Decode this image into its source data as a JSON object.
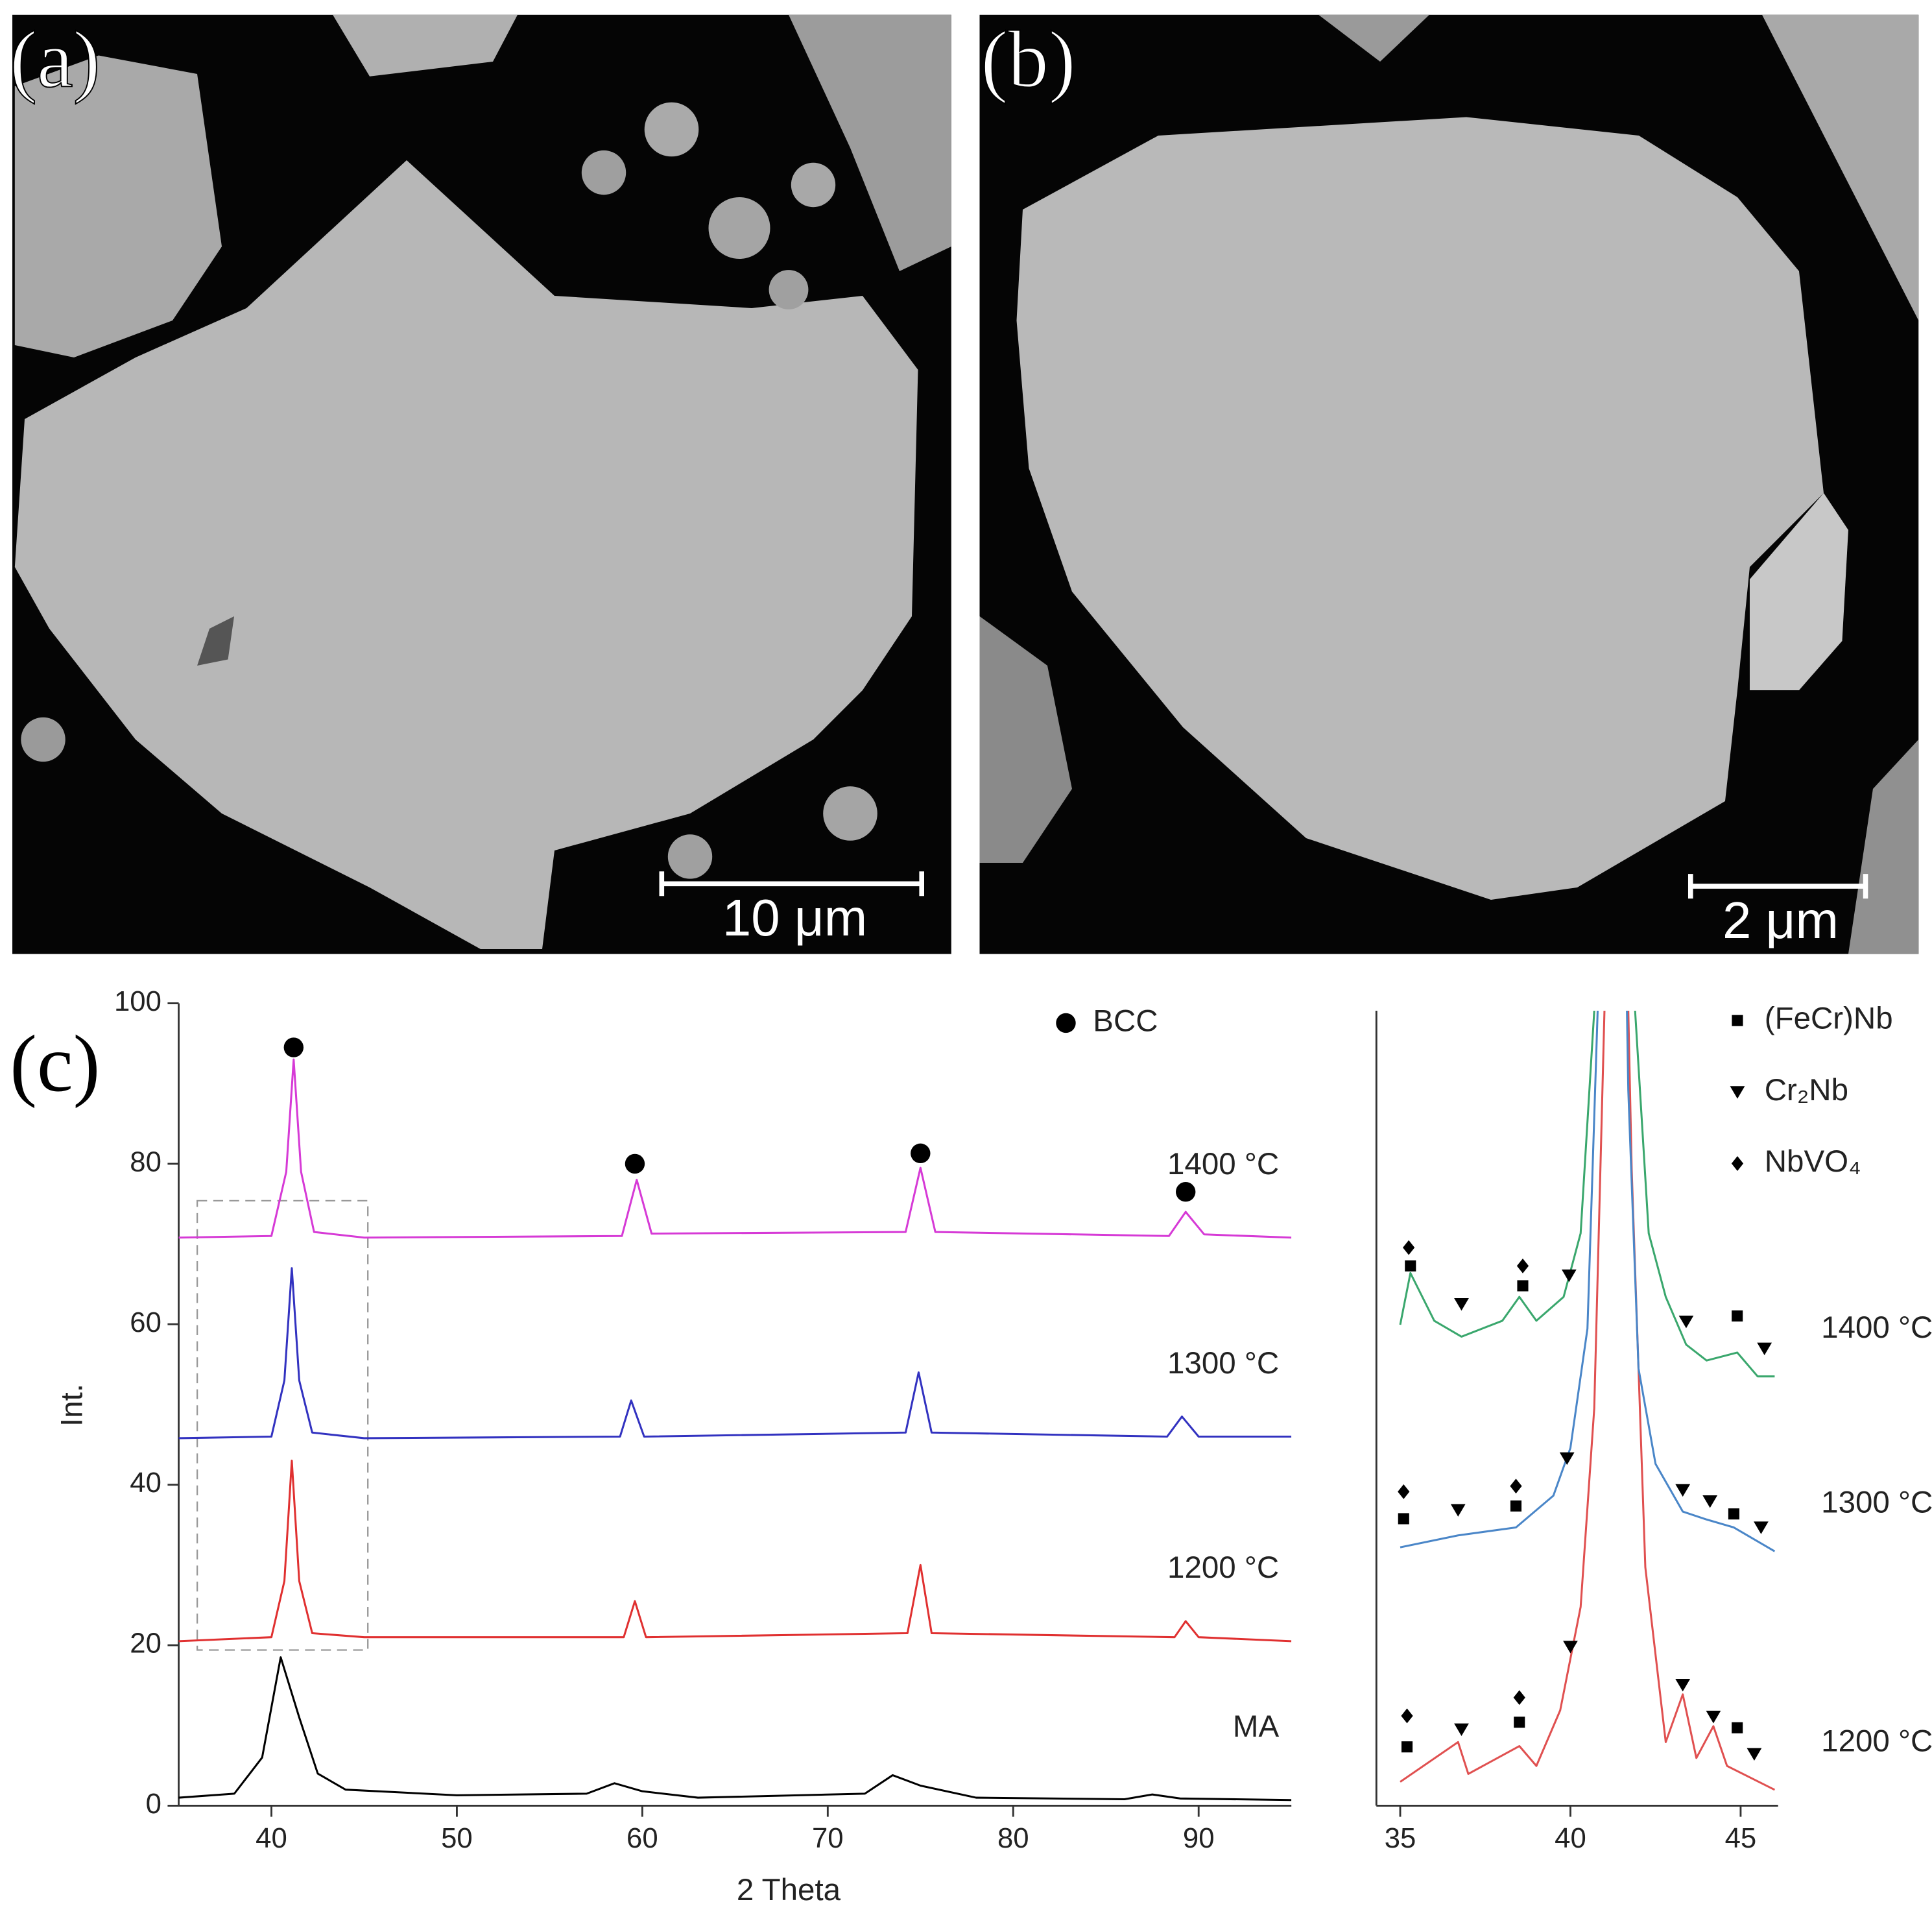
{
  "panels": [
    {
      "label": "(a)",
      "scale_bar": "10 μm"
    },
    {
      "label": "(b)",
      "scale_bar": "2 μm"
    }
  ],
  "chart_data": [
    {
      "type": "line",
      "panel_label": "(c)",
      "xlabel": "2 Theta",
      "ylabel": "Int.",
      "xlim": [
        35,
        95
      ],
      "ylim": [
        0,
        100
      ],
      "xticks": [
        40,
        50,
        60,
        70,
        80,
        90
      ],
      "yticks": [
        0,
        20,
        40,
        60,
        80,
        100
      ],
      "legend": "upper right",
      "inset_box": {
        "x": [
          36,
          45.2
        ],
        "y": [
          19.4,
          75.4
        ]
      },
      "series": [
        {
          "name": "MA",
          "color": "#000000",
          "x": [
            35,
            38,
            39.5,
            40.5,
            41.5,
            42.5,
            44,
            50,
            57,
            58.5,
            60,
            63,
            72,
            73.5,
            75,
            78,
            86,
            87.5,
            89,
            95
          ],
          "values": [
            1,
            1.5,
            6,
            18.5,
            11,
            4,
            2,
            1.3,
            1.5,
            2.8,
            1.8,
            1,
            1.5,
            3.8,
            2.5,
            1,
            0.8,
            1.4,
            0.9,
            0.7
          ]
        },
        {
          "name": "1200 °C",
          "color": "#e03030",
          "x": [
            35,
            40,
            40.7,
            41.1,
            41.5,
            42.2,
            45,
            59,
            59.6,
            60.2,
            74.3,
            75,
            75.6,
            88.7,
            89.3,
            90,
            95
          ],
          "values": [
            20.5,
            21,
            28,
            43,
            28,
            21.5,
            21,
            21,
            25.5,
            21,
            21.5,
            30,
            21.5,
            21,
            23,
            21,
            20.5
          ]
        },
        {
          "name": "1300 °C",
          "color": "#3232c0",
          "x": [
            35,
            40,
            40.7,
            41.1,
            41.5,
            42.2,
            45,
            58.8,
            59.4,
            60.1,
            74.2,
            74.9,
            75.6,
            88.3,
            89.1,
            90,
            95
          ],
          "values": [
            45.8,
            46,
            53,
            67,
            53,
            46.5,
            45.8,
            46,
            50.5,
            46,
            46.5,
            54,
            46.5,
            46,
            48.5,
            46,
            46
          ]
        },
        {
          "name": "1400 °C",
          "color": "#d63ad6",
          "x": [
            35,
            40,
            40.8,
            41.2,
            41.6,
            42.3,
            45,
            58.9,
            59.7,
            60.5,
            74.2,
            75,
            75.8,
            88.4,
            89.3,
            90.3,
            95
          ],
          "values": [
            70.8,
            71,
            79,
            93,
            79,
            71.5,
            70.8,
            71,
            78,
            71.3,
            71.5,
            79.5,
            71.5,
            71,
            74,
            71.2,
            70.8
          ]
        }
      ],
      "markers": [
        {
          "name": "BCC",
          "shape": "circle",
          "color": "#000000",
          "x": [
            41.2,
            59.6,
            75,
            89.3
          ],
          "y": [
            94.5,
            80,
            81.3,
            76.5
          ]
        }
      ]
    },
    {
      "type": "line",
      "xlim": [
        34.3,
        46.1
      ],
      "ylim": [
        0,
        100
      ],
      "xticks": [
        35,
        40,
        45
      ],
      "legend": "upper right",
      "series": [
        {
          "name": "1200 °C",
          "color": "#e05050",
          "x": [
            35,
            36.7,
            37,
            38.5,
            39,
            39.7,
            40.3,
            40.7,
            41,
            41.2,
            41.5,
            41.8,
            42.2,
            42.8,
            43.3,
            43.7,
            44.2,
            44.6,
            46
          ],
          "values": [
            3,
            8,
            4,
            7.5,
            5,
            12,
            25,
            50,
            100,
            140,
            140,
            80,
            30,
            8,
            14,
            6,
            10,
            5,
            2
          ]
        },
        {
          "name": "1300 °C",
          "color": "#4a86c8",
          "x": [
            35,
            36.7,
            38.4,
            39.5,
            40,
            40.5,
            40.8,
            41,
            41.5,
            41.7,
            42,
            42.5,
            43.3,
            44,
            44.8,
            46
          ],
          "values": [
            32.5,
            34,
            35,
            39,
            45,
            60,
            100,
            140,
            140,
            90,
            55,
            43,
            37,
            36,
            35,
            32
          ]
        },
        {
          "name": "1400 °C",
          "color": "#3aa76d",
          "x": [
            35,
            35.3,
            36,
            36.8,
            38,
            38.5,
            39,
            39.8,
            40.3,
            40.7,
            41,
            41.6,
            41.9,
            42.3,
            42.8,
            43.4,
            44,
            44.9,
            45.5,
            46
          ],
          "values": [
            60.5,
            67,
            61,
            59,
            61,
            64,
            61,
            64,
            72,
            100,
            140,
            140,
            100,
            72,
            64,
            58,
            56,
            57,
            54,
            54
          ]
        }
      ],
      "markers": [
        {
          "name": "(FeCr)Nb",
          "shape": "square",
          "color": "#000000",
          "x": [
            35.3,
            38.6,
            44.9,
            35.1,
            38.4,
            44.8,
            35.2,
            38.5,
            44.9
          ],
          "y": [
            67.9,
            65.4,
            61.6,
            36.1,
            37.7,
            36.7,
            7.4,
            10.5,
            9.8
          ]
        },
        {
          "name": "Cr₂Nb",
          "shape": "triangle",
          "color": "#000000",
          "x": [
            36.8,
            39.96,
            43.4,
            45.7,
            36.7,
            39.9,
            43.3,
            44.1,
            45.6,
            36.8,
            40.0,
            43.3,
            44.2,
            45.4
          ],
          "y": [
            63.1,
            66.7,
            60.9,
            57.5,
            37.2,
            43.7,
            39.7,
            38.3,
            35.0,
            9.6,
            20,
            15.2,
            11.2,
            6.5
          ]
        },
        {
          "name": "NbVO₄",
          "shape": "diamond",
          "color": "#000000",
          "x": [
            35.25,
            38.6,
            35.1,
            38.4,
            35.2,
            38.5
          ],
          "y": [
            70.2,
            67.9,
            39.5,
            40.2,
            11.3,
            13.6
          ]
        }
      ]
    }
  ]
}
